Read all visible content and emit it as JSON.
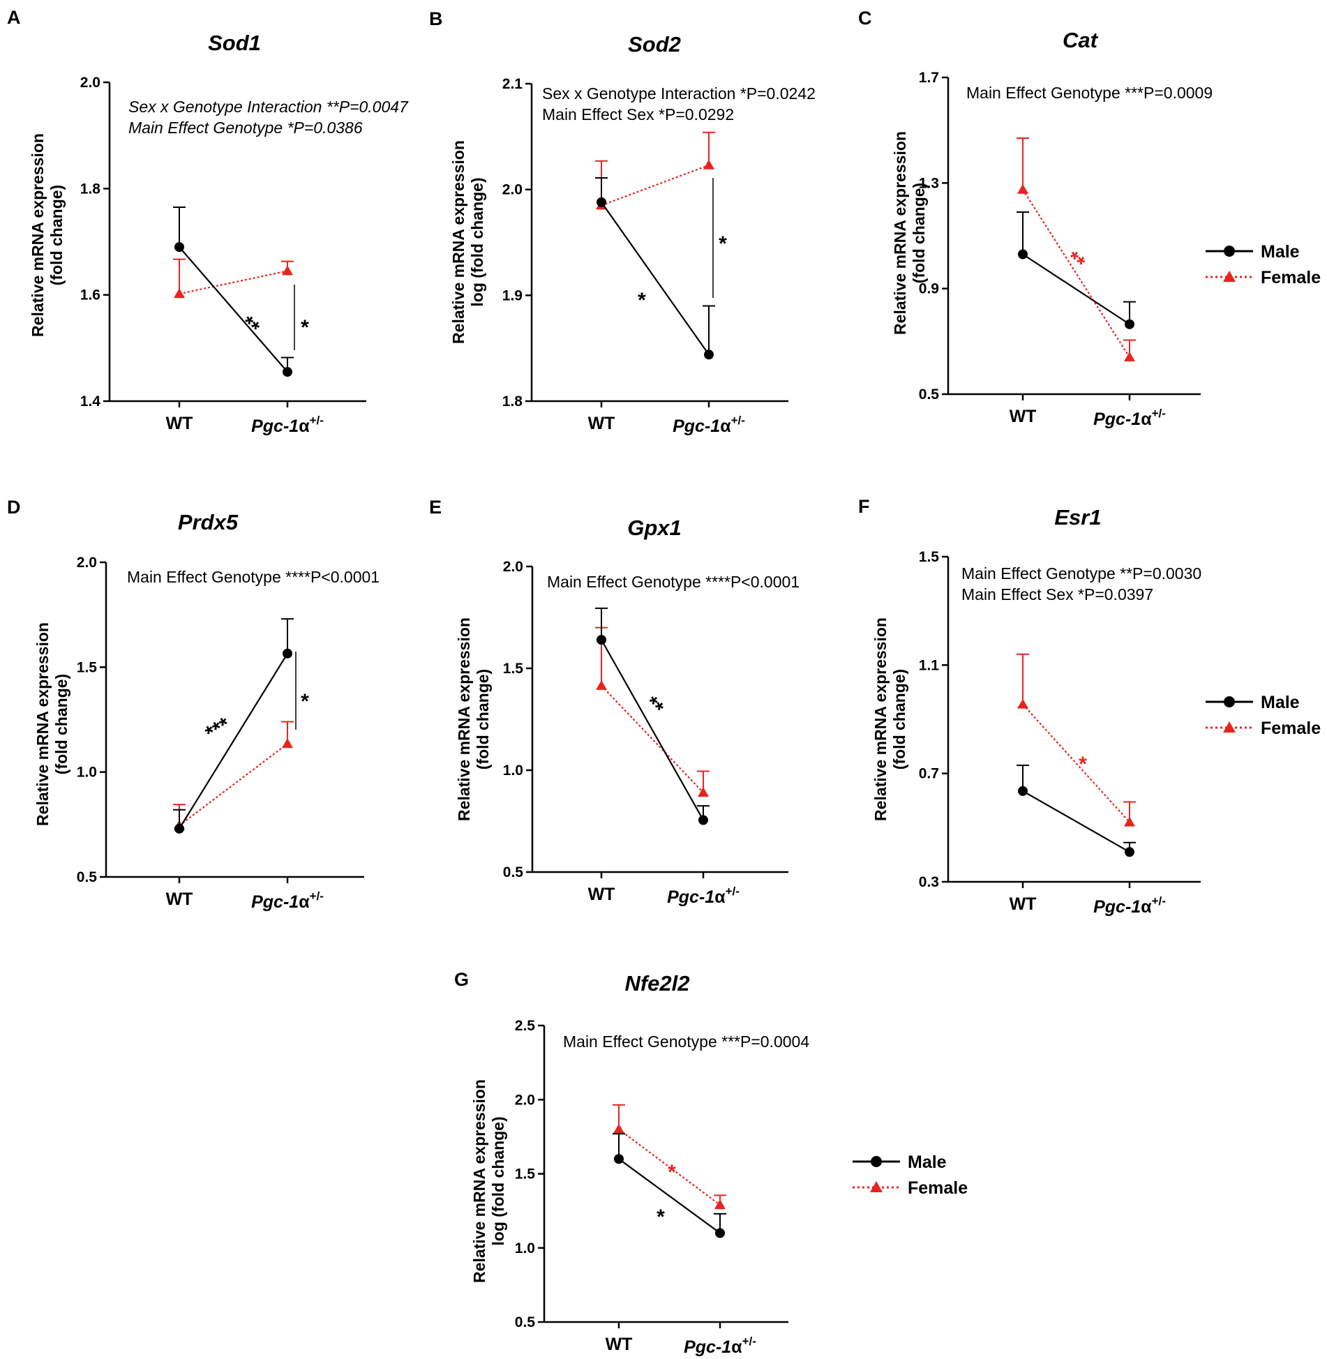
{
  "legend": {
    "male": "Male",
    "female": "Female"
  },
  "colors": {
    "male": "#000000",
    "female": "#e8241f"
  },
  "chart_data": [
    {
      "id": "A",
      "type": "line",
      "title": "Sod1",
      "ylabel": "Relative mRNA expression|(fold change)",
      "ylim": [
        1.4,
        2.0
      ],
      "ticks": [
        1.4,
        1.6,
        1.8,
        2.0
      ],
      "tick_labels": [
        "1.4",
        "1.6",
        "1.8",
        "2.0"
      ],
      "categories": [
        "WT",
        "Pgc-1"
      ],
      "category_suffix": "α",
      "category_superscript": "+/-",
      "annotations": [
        {
          "text": "Sex x Genotype Interaction **P=0.0047",
          "italic": true
        },
        {
          "text": "Main Effect Genotype *P=0.0386",
          "italic": true
        }
      ],
      "series": [
        {
          "name": "Male",
          "values": [
            1.69,
            1.455
          ],
          "errors": [
            0.075,
            0.027
          ]
        },
        {
          "name": "Female",
          "values": [
            1.602,
            1.645
          ],
          "errors": [
            0.065,
            0.018
          ]
        }
      ],
      "significance": [
        {
          "text": "**",
          "color": "male",
          "kind": "slope"
        },
        {
          "text": "*",
          "color": "male",
          "kind": "bracket"
        }
      ]
    },
    {
      "id": "B",
      "type": "line",
      "title": "Sod2",
      "ylabel": "Relative mRNA expression|log (fold change)",
      "ylim": [
        1.8,
        2.1
      ],
      "ticks": [
        1.8,
        1.9,
        2.0,
        2.1
      ],
      "tick_labels": [
        "1.8",
        "1.9",
        "2.0",
        "2.1"
      ],
      "categories": [
        "WT",
        "Pgc-1"
      ],
      "category_suffix": "α",
      "category_superscript": "+/-",
      "annotations": [
        {
          "text": "Sex x Genotype Interaction *P=0.0242",
          "italic": false
        },
        {
          "text": "Main Effect Sex *P=0.0292",
          "italic": false
        }
      ],
      "series": [
        {
          "name": "Male",
          "values": [
            1.988,
            1.844
          ],
          "errors": [
            0.023,
            0.046
          ]
        },
        {
          "name": "Female",
          "values": [
            1.985,
            2.023
          ],
          "errors": [
            0.042,
            0.031
          ]
        }
      ],
      "significance": [
        {
          "text": "*",
          "color": "male",
          "kind": "slope"
        },
        {
          "text": "*",
          "color": "male",
          "kind": "bracket"
        }
      ]
    },
    {
      "id": "C",
      "type": "line",
      "title": "Cat",
      "ylabel": "Relative mRNA expression|(fold change)",
      "ylim": [
        0.5,
        1.7
      ],
      "ticks": [
        0.5,
        0.9,
        1.3,
        1.7
      ],
      "tick_labels": [
        "0.5",
        "0.9",
        "1.3",
        "1.7"
      ],
      "categories": [
        "WT",
        "Pgc-1"
      ],
      "category_suffix": "α",
      "category_superscript": "+/-",
      "annotations": [
        {
          "text": "Main Effect Genotype ***P=0.0009",
          "italic": false
        }
      ],
      "series": [
        {
          "name": "Male",
          "values": [
            1.03,
            0.765
          ],
          "errors": [
            0.16,
            0.085
          ]
        },
        {
          "name": "Female",
          "values": [
            1.275,
            0.64
          ],
          "errors": [
            0.195,
            0.065
          ]
        }
      ],
      "significance": [
        {
          "text": "**",
          "color": "female",
          "kind": "slope"
        }
      ]
    },
    {
      "id": "D",
      "type": "line",
      "title": "Prdx5",
      "ylabel": "Relative mRNA expression|(fold change)",
      "ylim": [
        0.5,
        2.0
      ],
      "ticks": [
        0.5,
        1.0,
        1.5,
        2.0
      ],
      "tick_labels": [
        "0.5",
        "1.0",
        "1.5",
        "2.0"
      ],
      "categories": [
        "WT",
        "Pgc-1"
      ],
      "category_suffix": "α",
      "category_superscript": "+/-",
      "annotations": [
        {
          "text": "Main Effect Genotype ****P<0.0001",
          "italic": false
        }
      ],
      "series": [
        {
          "name": "Male",
          "values": [
            0.73,
            1.565
          ],
          "errors": [
            0.09,
            0.165
          ]
        },
        {
          "name": "Female",
          "values": [
            0.745,
            1.135
          ],
          "errors": [
            0.1,
            0.105
          ]
        }
      ],
      "significance": [
        {
          "text": "***",
          "color": "male",
          "kind": "slope"
        },
        {
          "text": "*",
          "color": "male",
          "kind": "bracket"
        }
      ]
    },
    {
      "id": "E",
      "type": "line",
      "title": "Gpx1",
      "ylabel": "Relative mRNA expression|(fold change)",
      "ylim": [
        0.5,
        2.0
      ],
      "ticks": [
        0.5,
        1.0,
        1.5,
        2.0
      ],
      "tick_labels": [
        "0.5",
        "1.0",
        "1.5",
        "2.0"
      ],
      "categories": [
        "WT",
        "Pgc-1"
      ],
      "category_suffix": "α",
      "category_superscript": "+/-",
      "annotations": [
        {
          "text": "Main Effect Genotype ****P<0.0001",
          "italic": false
        }
      ],
      "series": [
        {
          "name": "Male",
          "values": [
            1.64,
            0.755
          ],
          "errors": [
            0.155,
            0.07
          ]
        },
        {
          "name": "Female",
          "values": [
            1.415,
            0.89
          ],
          "errors": [
            0.285,
            0.105
          ]
        }
      ],
      "significance": [
        {
          "text": "**",
          "color": "male",
          "kind": "slope"
        }
      ]
    },
    {
      "id": "F",
      "type": "line",
      "title": "Esr1",
      "ylabel": "Relative mRNA expression|(fold change)",
      "ylim": [
        0.3,
        1.5
      ],
      "ticks": [
        0.3,
        0.7,
        1.1,
        1.5
      ],
      "tick_labels": [
        "0.3",
        "0.7",
        "1.1",
        "1.5"
      ],
      "categories": [
        "WT",
        "Pgc-1"
      ],
      "category_suffix": "α",
      "category_superscript": "+/-",
      "annotations": [
        {
          "text": "Main Effect Genotype **P=0.0030",
          "italic": false
        },
        {
          "text": "Main Effect Sex *P=0.0397",
          "italic": false
        }
      ],
      "series": [
        {
          "name": "Male",
          "values": [
            0.635,
            0.41
          ],
          "errors": [
            0.095,
            0.035
          ]
        },
        {
          "name": "Female",
          "values": [
            0.955,
            0.52
          ],
          "errors": [
            0.185,
            0.075
          ]
        }
      ],
      "significance": [
        {
          "text": "*",
          "color": "female",
          "kind": "slope"
        }
      ]
    },
    {
      "id": "G",
      "type": "line",
      "title": "Nfe2l2",
      "ylabel": "Relative mRNA expression|log (fold change)",
      "ylim": [
        0.5,
        2.5
      ],
      "ticks": [
        0.5,
        1.0,
        1.5,
        2.0,
        2.5
      ],
      "tick_labels": [
        "0.5",
        "1.0",
        "1.5",
        "2.0",
        "2.5"
      ],
      "categories": [
        "WT",
        "Pgc-1"
      ],
      "category_suffix": "α",
      "category_superscript": "+/-",
      "annotations": [
        {
          "text": "Main Effect Genotype ***P=0.0004",
          "italic": false
        }
      ],
      "series": [
        {
          "name": "Male",
          "values": [
            1.6,
            1.1
          ],
          "errors": [
            0.17,
            0.13
          ]
        },
        {
          "name": "Female",
          "values": [
            1.8,
            1.29
          ],
          "errors": [
            0.165,
            0.065
          ]
        }
      ],
      "significance": [
        {
          "text": "*",
          "color": "female",
          "kind": "slope"
        },
        {
          "text": "*",
          "color": "male",
          "kind": "slope"
        }
      ]
    }
  ]
}
